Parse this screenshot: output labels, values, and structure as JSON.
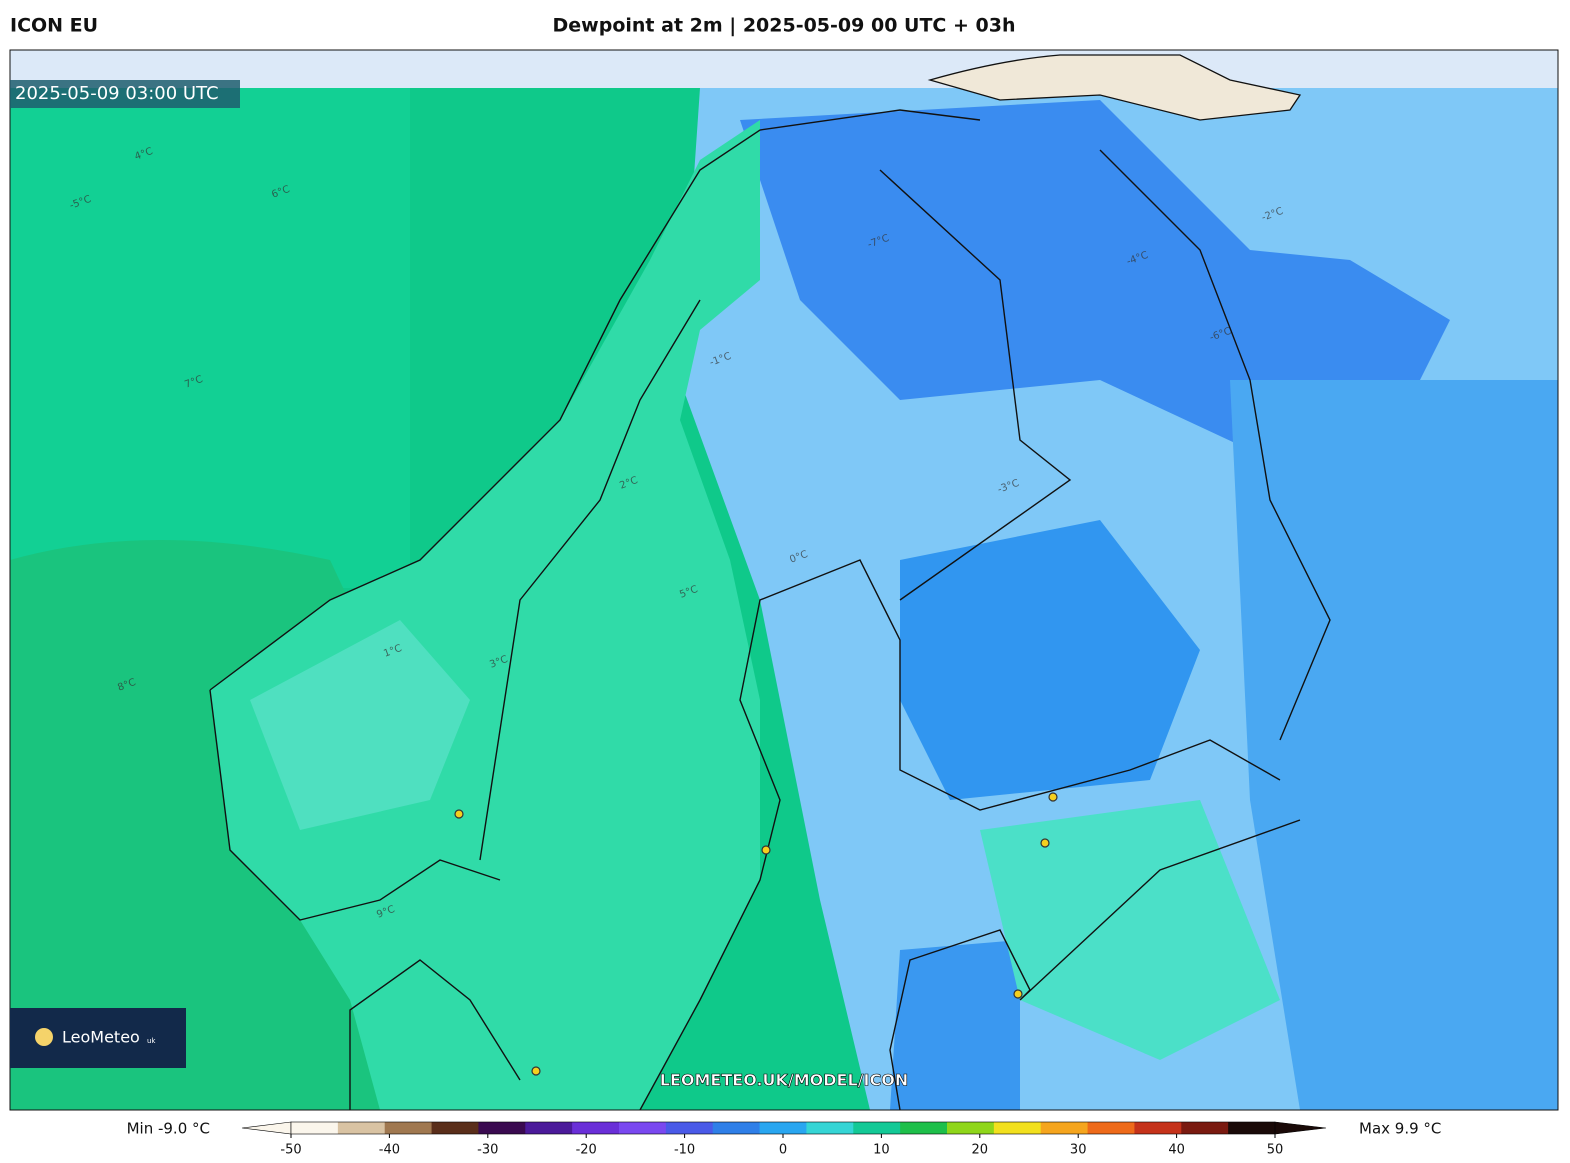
{
  "header": {
    "model": "ICON EU",
    "title": "Dewpoint at 2m | 2025-05-09 00 UTC + 03h"
  },
  "map": {
    "valid_time": "2025-05-09 03:00 UTC",
    "logo": "LeoMeteo",
    "logo_suffix": "uk",
    "watermark": "LEOMETEO.UK/MODEL/ICON",
    "contour_labels": [
      "4°C",
      "5°C",
      "6°C",
      "7°C",
      "8°C",
      "9°C",
      "3°C",
      "1°C",
      "-1°C",
      "-2°C",
      "-3°C",
      "-4°C",
      "-5°C",
      "-6°C",
      "-7°C",
      "0°C",
      "2°C"
    ]
  },
  "colorbar": {
    "min_label": "Min -9.0 °C",
    "max_label": "Max 9.9 °C",
    "lim": [
      -50,
      50
    ],
    "ticks": [
      -50,
      -40,
      -30,
      -20,
      -10,
      0,
      10,
      20,
      30,
      40,
      50
    ],
    "colors": [
      "#fbf6ec",
      "#d9c3a3",
      "#a07850",
      "#5a2e1a",
      "#3a0a50",
      "#4b1a9a",
      "#6a2fd8",
      "#7a48f0",
      "#4a5ae8",
      "#2f7fe8",
      "#29a6f0",
      "#35d5d5",
      "#13c996",
      "#1ebf4a",
      "#8fd61a",
      "#f2e01e",
      "#f5a51e",
      "#ee6a1a",
      "#c5321a",
      "#7a1a10",
      "#1a0a08"
    ]
  }
}
